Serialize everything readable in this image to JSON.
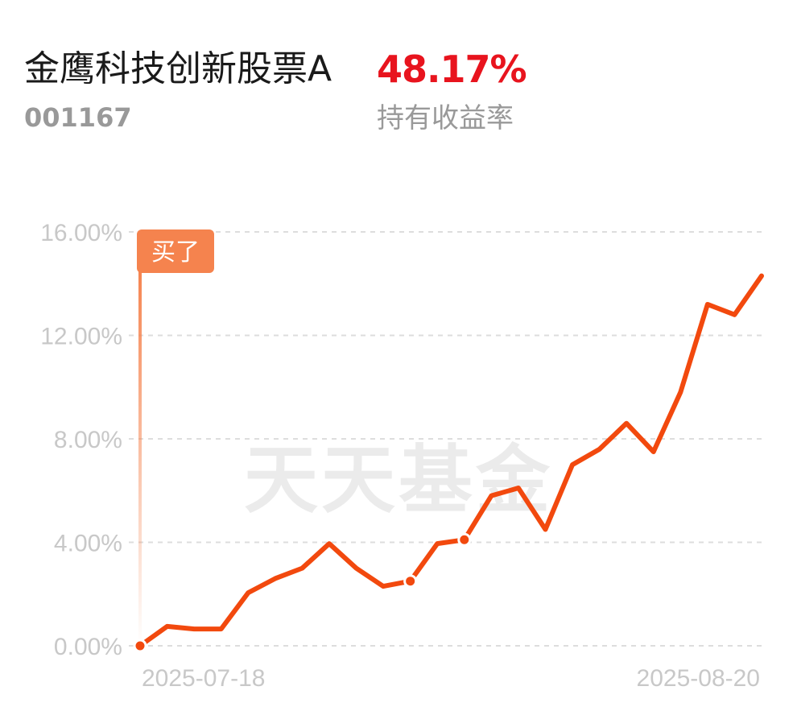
{
  "header": {
    "fund_name": "金鹰科技创新股票A",
    "fund_code": "001167",
    "return_value": "48.17%",
    "return_label": "持有收益率"
  },
  "watermark": "天天基金",
  "buy_marker": "买了",
  "colors": {
    "line": "#f2490e",
    "return": "#e8141e",
    "buy_tag": "#f5834e",
    "grid": "#dddddd",
    "axis_text": "#c8c8c8"
  },
  "chart_data": {
    "type": "line",
    "x_start_label": "2025-07-18",
    "x_end_label": "2025-08-20",
    "ylim": [
      0,
      16
    ],
    "y_ticks": [
      "0.00%",
      "4.00%",
      "8.00%",
      "12.00%",
      "16.00%"
    ],
    "y_tick_values": [
      0,
      4,
      8,
      12,
      16
    ],
    "grid": "horizontal dashed",
    "series": [
      {
        "values": [
          0.0,
          0.75,
          0.65,
          0.65,
          2.05,
          2.6,
          3.0,
          3.95,
          3.0,
          2.3,
          2.5,
          3.95,
          4.1,
          5.8,
          6.1,
          4.5,
          7.0,
          7.6,
          8.6,
          7.5,
          9.8,
          13.2,
          12.8,
          14.3
        ],
        "marked_points": [
          0,
          10,
          12
        ]
      }
    ]
  }
}
